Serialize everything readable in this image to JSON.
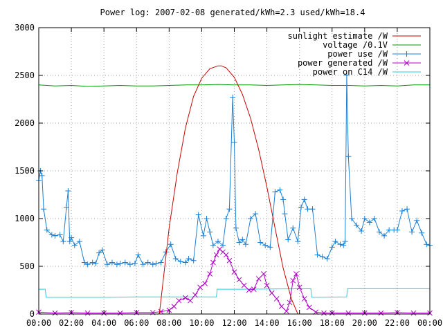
{
  "chart_data": {
    "type": "line",
    "title": "Power log: 2007-02-08 generated/kWh=2.3 used/kWh=18.4",
    "xlabel": "",
    "ylabel": "",
    "xlim": [
      0,
      24
    ],
    "ylim": [
      0,
      3000
    ],
    "grid": true,
    "legend_position": "top-right",
    "x_ticks": [
      0,
      2,
      4,
      6,
      8,
      10,
      12,
      14,
      16,
      18,
      20,
      22,
      24
    ],
    "x_tick_labels": [
      "00:00",
      "02:00",
      "04:00",
      "06:00",
      "08:00",
      "10:00",
      "12:00",
      "14:00",
      "16:00",
      "18:00",
      "20:00",
      "22:00",
      "00:00"
    ],
    "y_ticks": [
      0,
      500,
      1000,
      1500,
      2000,
      2500,
      3000
    ],
    "y_tick_labels": [
      "0",
      "500",
      "1000",
      "1500",
      "2000",
      "2500",
      "3000"
    ],
    "colors": {
      "sunlight": "#cc0000",
      "voltage": "#009900",
      "power_use": "#1a7fd4",
      "generated": "#b000c8",
      "c14": "#22d0e0"
    },
    "series": [
      {
        "name": "sunlight estimate /W",
        "style": "line",
        "color_key": "sunlight",
        "x": [
          7.4,
          7.7,
          8.0,
          8.5,
          9.0,
          9.5,
          10.0,
          10.5,
          11.0,
          11.2,
          11.5,
          12.0,
          12.5,
          13.0,
          13.5,
          14.0,
          14.5,
          15.0,
          15.5,
          15.9,
          16.2
        ],
        "y": [
          0,
          450,
          900,
          1480,
          1950,
          2280,
          2470,
          2570,
          2600,
          2600,
          2580,
          2480,
          2300,
          2050,
          1720,
          1330,
          900,
          480,
          160,
          0,
          0
        ]
      },
      {
        "name": "voltage /0.1V",
        "style": "line",
        "color_key": "voltage",
        "x": [
          0,
          1,
          2,
          3,
          4,
          5,
          6,
          7,
          8,
          9,
          10,
          11,
          12,
          13,
          14,
          15,
          16,
          17,
          18,
          19,
          20,
          21,
          22,
          23,
          24
        ],
        "y": [
          2400,
          2390,
          2395,
          2385,
          2390,
          2395,
          2390,
          2390,
          2395,
          2400,
          2400,
          2405,
          2400,
          2400,
          2395,
          2400,
          2405,
          2400,
          2395,
          2395,
          2390,
          2395,
          2390,
          2400,
          2400
        ]
      },
      {
        "name": "power use /W",
        "style": "linespoints-plus",
        "color_key": "power_use",
        "x": [
          0,
          0.1,
          0.2,
          0.3,
          0.5,
          0.8,
          1.0,
          1.3,
          1.5,
          1.7,
          1.8,
          1.9,
          2.0,
          2.2,
          2.5,
          2.8,
          3.0,
          3.3,
          3.5,
          3.7,
          3.9,
          4.2,
          4.5,
          4.8,
          5.0,
          5.3,
          5.6,
          5.9,
          6.1,
          6.4,
          6.7,
          7.0,
          7.2,
          7.5,
          7.8,
          8.1,
          8.4,
          8.7,
          9.0,
          9.2,
          9.5,
          9.8,
          10.1,
          10.3,
          10.5,
          10.7,
          11.0,
          11.3,
          11.5,
          11.7,
          11.9,
          12.0,
          12.1,
          12.3,
          12.5,
          12.7,
          13.0,
          13.3,
          13.6,
          13.9,
          14.2,
          14.5,
          14.8,
          15.0,
          15.1,
          15.3,
          15.6,
          15.9,
          16.1,
          16.3,
          16.5,
          16.8,
          17.1,
          17.4,
          17.7,
          18.0,
          18.2,
          18.5,
          18.7,
          18.8,
          18.9,
          19.0,
          19.2,
          19.5,
          19.8,
          20.0,
          20.3,
          20.6,
          20.9,
          21.2,
          21.5,
          21.8,
          22.0,
          22.3,
          22.6,
          22.9,
          23.2,
          23.5,
          23.8,
          24.0
        ],
        "y": [
          1400,
          1500,
          1450,
          1100,
          880,
          830,
          820,
          830,
          760,
          1120,
          1290,
          760,
          800,
          720,
          760,
          540,
          520,
          540,
          530,
          640,
          670,
          520,
          540,
          520,
          530,
          540,
          520,
          530,
          620,
          520,
          540,
          520,
          530,
          540,
          650,
          730,
          580,
          550,
          540,
          580,
          560,
          1040,
          820,
          1000,
          860,
          720,
          760,
          720,
          1000,
          1100,
          2270,
          1800,
          900,
          750,
          780,
          730,
          1000,
          1050,
          750,
          720,
          700,
          1280,
          1300,
          1200,
          1050,
          780,
          900,
          760,
          1120,
          1200,
          1100,
          1100,
          620,
          600,
          580,
          700,
          760,
          730,
          720,
          760,
          2500,
          1650,
          1000,
          930,
          870,
          1000,
          960,
          1000,
          860,
          820,
          880,
          880,
          880,
          1080,
          1100,
          860,
          980,
          850,
          730,
          720
        ]
      },
      {
        "name": "power generated /W",
        "style": "linespoints-x",
        "color_key": "generated",
        "x": [
          0,
          1,
          2,
          3,
          4,
          5,
          6,
          7,
          7.5,
          8.0,
          8.3,
          8.6,
          9.0,
          9.3,
          9.6,
          9.9,
          10.2,
          10.5,
          10.7,
          10.9,
          11.1,
          11.3,
          11.5,
          11.7,
          12.0,
          12.3,
          12.6,
          12.9,
          13.2,
          13.5,
          13.8,
          14.0,
          14.3,
          14.6,
          14.9,
          15.2,
          15.4,
          15.6,
          15.8,
          16.0,
          16.3,
          16.6,
          17.0,
          17.5,
          18,
          19,
          20,
          21,
          22,
          23,
          24
        ],
        "y": [
          20,
          10,
          15,
          10,
          10,
          10,
          15,
          15,
          25,
          40,
          80,
          140,
          170,
          140,
          200,
          280,
          320,
          420,
          540,
          620,
          680,
          650,
          620,
          560,
          440,
          360,
          300,
          250,
          260,
          370,
          420,
          300,
          220,
          160,
          80,
          30,
          120,
          350,
          420,
          280,
          160,
          70,
          20,
          10,
          10,
          10,
          10,
          10,
          15,
          10,
          10
        ]
      },
      {
        "name": "power on C14 /W",
        "style": "line",
        "color_key": "c14",
        "x": [
          0,
          0.4,
          0.45,
          1.6,
          2.0,
          4.0,
          6.0,
          8.0,
          10.0,
          10.9,
          10.95,
          12.0,
          12.4,
          12.45,
          16.7,
          16.75,
          18.9,
          18.95,
          24
        ],
        "y": [
          260,
          260,
          175,
          175,
          175,
          175,
          180,
          180,
          180,
          180,
          260,
          260,
          260,
          260,
          265,
          175,
          180,
          265,
          265
        ]
      }
    ]
  }
}
